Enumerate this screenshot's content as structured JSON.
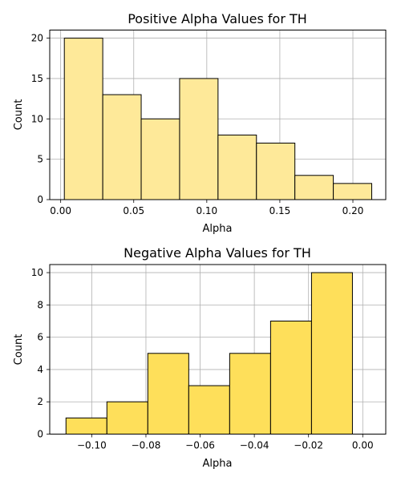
{
  "chart_data": [
    {
      "type": "bar",
      "title": "Positive Alpha Values for TH",
      "xlabel": "Alpha",
      "ylabel": "Count",
      "xlim": [
        -0.0075,
        0.2225
      ],
      "ylim": [
        0,
        21
      ],
      "xticks": [
        0.0,
        0.05,
        0.1,
        0.15,
        0.2
      ],
      "xtick_labels": [
        "0.00",
        "0.05",
        "0.10",
        "0.15",
        "0.20"
      ],
      "yticks": [
        0,
        5,
        10,
        15,
        20
      ],
      "ytick_labels": [
        "0",
        "5",
        "10",
        "15",
        "20"
      ],
      "grid": true,
      "bar_color": "#FEE999",
      "bins": [
        {
          "start": 0.0025,
          "end": 0.0288,
          "count": 20
        },
        {
          "start": 0.0288,
          "end": 0.0551,
          "count": 13
        },
        {
          "start": 0.0551,
          "end": 0.0814,
          "count": 10
        },
        {
          "start": 0.0814,
          "end": 0.1077,
          "count": 15
        },
        {
          "start": 0.1077,
          "end": 0.134,
          "count": 8
        },
        {
          "start": 0.134,
          "end": 0.1603,
          "count": 7
        },
        {
          "start": 0.1603,
          "end": 0.1866,
          "count": 3
        },
        {
          "start": 0.1866,
          "end": 0.2129,
          "count": 2
        }
      ]
    },
    {
      "type": "bar",
      "title": "Negative Alpha Values for TH",
      "xlabel": "Alpha",
      "ylabel": "Count",
      "xlim": [
        -0.1155,
        0.0085
      ],
      "ylim": [
        0,
        10.5
      ],
      "xticks": [
        -0.1,
        -0.08,
        -0.06,
        -0.04,
        -0.02,
        0.0
      ],
      "xtick_labels": [
        "−0.10",
        "−0.08",
        "−0.06",
        "−0.04",
        "−0.02",
        "0.00"
      ],
      "yticks": [
        0,
        2,
        4,
        6,
        8,
        10
      ],
      "ytick_labels": [
        "0",
        "2",
        "4",
        "6",
        "8",
        "10"
      ],
      "grid": true,
      "bar_color": "#FEDF5A",
      "bins": [
        {
          "start": -0.1095,
          "end": -0.0944,
          "count": 1
        },
        {
          "start": -0.0944,
          "end": -0.0793,
          "count": 2
        },
        {
          "start": -0.0793,
          "end": -0.0642,
          "count": 5
        },
        {
          "start": -0.0642,
          "end": -0.0491,
          "count": 3
        },
        {
          "start": -0.0491,
          "end": -0.034,
          "count": 5
        },
        {
          "start": -0.034,
          "end": -0.0189,
          "count": 7
        },
        {
          "start": -0.0189,
          "end": -0.0038,
          "count": 10
        }
      ]
    }
  ]
}
